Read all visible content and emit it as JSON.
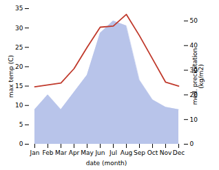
{
  "chart_data": {
    "type": "line",
    "xlabel": "date (month)",
    "ylabel": "max temp (C)",
    "y2label": "med. precipitation\n(kg/m2)",
    "categories": [
      "Jan",
      "Feb",
      "Mar",
      "Apr",
      "May",
      "Jun",
      "Jul",
      "Aug",
      "Sep",
      "Oct",
      "Nov",
      "Dec"
    ],
    "series": [
      {
        "type": "area",
        "axis": "y2",
        "color": "#b8c4ea",
        "values": [
          14,
          20,
          14,
          21,
          28,
          45,
          50,
          48,
          26,
          18,
          15,
          14
        ]
      },
      {
        "type": "line",
        "color": "#c0392b",
        "values": [
          14.8,
          15.3,
          15.8,
          19.5,
          25.0,
          30.2,
          30.5,
          33.5,
          28.0,
          22.0,
          16.0,
          15.0
        ]
      }
    ],
    "ylim": [
      0,
      35
    ],
    "yticks": [
      0,
      5,
      10,
      15,
      20,
      25,
      30,
      35
    ],
    "y2lim": [
      0,
      55
    ],
    "y2ticks": [
      0,
      10,
      20,
      30,
      40,
      50
    ],
    "grid": false
  }
}
